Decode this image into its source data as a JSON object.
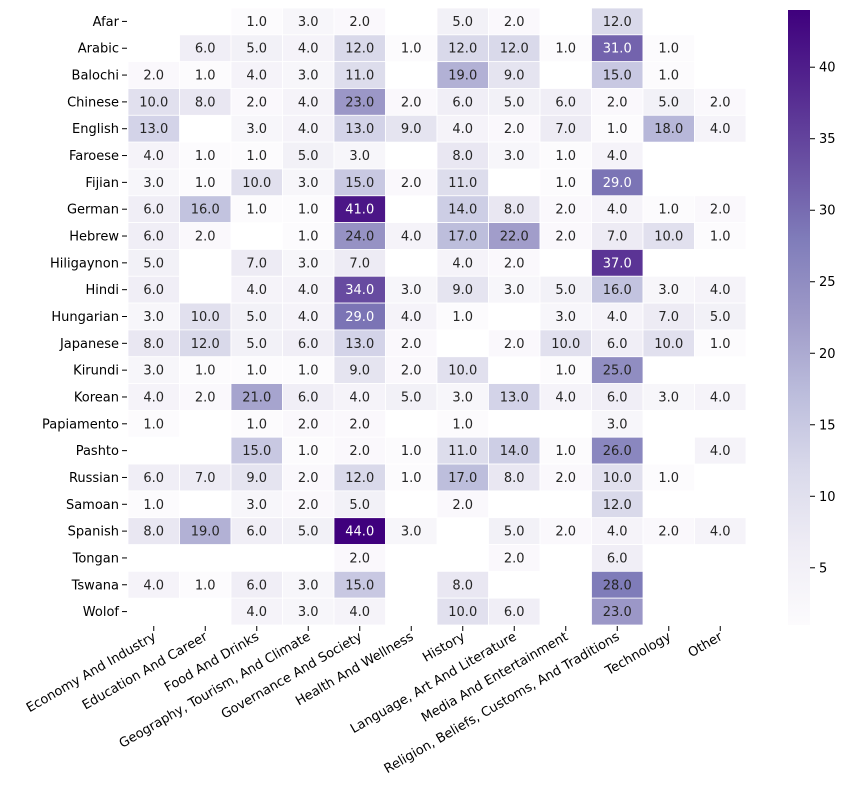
{
  "chart_data": {
    "type": "heatmap",
    "title": "",
    "xlabel": "",
    "ylabel": "",
    "rows": [
      "Afar",
      "Arabic",
      "Balochi",
      "Chinese",
      "English",
      "Faroese",
      "Fijian",
      "German",
      "Hebrew",
      "Hiligaynon",
      "Hindi",
      "Hungarian",
      "Japanese",
      "Kirundi",
      "Korean",
      "Papiamento",
      "Pashto",
      "Russian",
      "Samoan",
      "Spanish",
      "Tongan",
      "Tswana",
      "Wolof"
    ],
    "columns": [
      "Economy And Industry",
      "Education And Career",
      "Food And Drinks",
      "Geography, Tourism, And Climate",
      "Governance And Society",
      "Health And Wellness",
      "History",
      "Language, Art And Literature",
      "Media And Entertainment",
      "Religion, Beliefs, Customs, And Traditions",
      "Technology",
      "Other"
    ],
    "values": [
      [
        null,
        null,
        1.0,
        3.0,
        2.0,
        null,
        5.0,
        2.0,
        null,
        12.0,
        null,
        null
      ],
      [
        null,
        6.0,
        5.0,
        4.0,
        12.0,
        1.0,
        12.0,
        12.0,
        1.0,
        31.0,
        1.0,
        null
      ],
      [
        2.0,
        1.0,
        4.0,
        3.0,
        11.0,
        null,
        19.0,
        9.0,
        null,
        15.0,
        1.0,
        null
      ],
      [
        10.0,
        8.0,
        2.0,
        4.0,
        23.0,
        2.0,
        6.0,
        5.0,
        6.0,
        2.0,
        5.0,
        2.0
      ],
      [
        13.0,
        null,
        3.0,
        4.0,
        13.0,
        9.0,
        4.0,
        2.0,
        7.0,
        1.0,
        18.0,
        4.0
      ],
      [
        4.0,
        1.0,
        1.0,
        5.0,
        3.0,
        null,
        8.0,
        3.0,
        1.0,
        4.0,
        null,
        null
      ],
      [
        3.0,
        1.0,
        10.0,
        3.0,
        15.0,
        2.0,
        11.0,
        null,
        1.0,
        29.0,
        null,
        null
      ],
      [
        6.0,
        16.0,
        1.0,
        1.0,
        41.0,
        null,
        14.0,
        8.0,
        2.0,
        4.0,
        1.0,
        2.0
      ],
      [
        6.0,
        2.0,
        null,
        1.0,
        24.0,
        4.0,
        17.0,
        22.0,
        2.0,
        7.0,
        10.0,
        1.0
      ],
      [
        5.0,
        null,
        7.0,
        3.0,
        7.0,
        null,
        4.0,
        2.0,
        null,
        37.0,
        null,
        null
      ],
      [
        6.0,
        null,
        4.0,
        4.0,
        34.0,
        3.0,
        9.0,
        3.0,
        5.0,
        16.0,
        3.0,
        4.0
      ],
      [
        3.0,
        10.0,
        5.0,
        4.0,
        29.0,
        4.0,
        1.0,
        null,
        3.0,
        4.0,
        7.0,
        5.0
      ],
      [
        8.0,
        12.0,
        5.0,
        6.0,
        13.0,
        2.0,
        null,
        2.0,
        10.0,
        6.0,
        10.0,
        1.0
      ],
      [
        3.0,
        1.0,
        1.0,
        1.0,
        9.0,
        2.0,
        10.0,
        null,
        1.0,
        25.0,
        null,
        null
      ],
      [
        4.0,
        2.0,
        21.0,
        6.0,
        4.0,
        5.0,
        3.0,
        13.0,
        4.0,
        6.0,
        3.0,
        4.0
      ],
      [
        1.0,
        null,
        1.0,
        2.0,
        2.0,
        null,
        1.0,
        null,
        null,
        3.0,
        null,
        null
      ],
      [
        null,
        null,
        15.0,
        1.0,
        2.0,
        1.0,
        11.0,
        14.0,
        1.0,
        26.0,
        null,
        4.0
      ],
      [
        6.0,
        7.0,
        9.0,
        2.0,
        12.0,
        1.0,
        17.0,
        8.0,
        2.0,
        10.0,
        1.0,
        null
      ],
      [
        1.0,
        null,
        3.0,
        2.0,
        5.0,
        null,
        2.0,
        null,
        null,
        12.0,
        null,
        null
      ],
      [
        8.0,
        19.0,
        6.0,
        5.0,
        44.0,
        3.0,
        null,
        5.0,
        2.0,
        4.0,
        2.0,
        4.0
      ],
      [
        null,
        null,
        null,
        null,
        2.0,
        null,
        null,
        2.0,
        null,
        6.0,
        null,
        null
      ],
      [
        4.0,
        1.0,
        6.0,
        3.0,
        15.0,
        null,
        8.0,
        null,
        null,
        28.0,
        null,
        null
      ],
      [
        null,
        null,
        4.0,
        3.0,
        4.0,
        null,
        10.0,
        6.0,
        null,
        23.0,
        null,
        null
      ]
    ],
    "colorbar": {
      "min": 1,
      "max": 44,
      "ticks": [
        5,
        10,
        15,
        20,
        25,
        30,
        35,
        40
      ],
      "colormap": "Purples"
    },
    "colors": {
      "low": "#fcfbfd",
      "high": "#3f007d",
      "text_dark": "#262626",
      "text_light": "#ffffff"
    }
  }
}
